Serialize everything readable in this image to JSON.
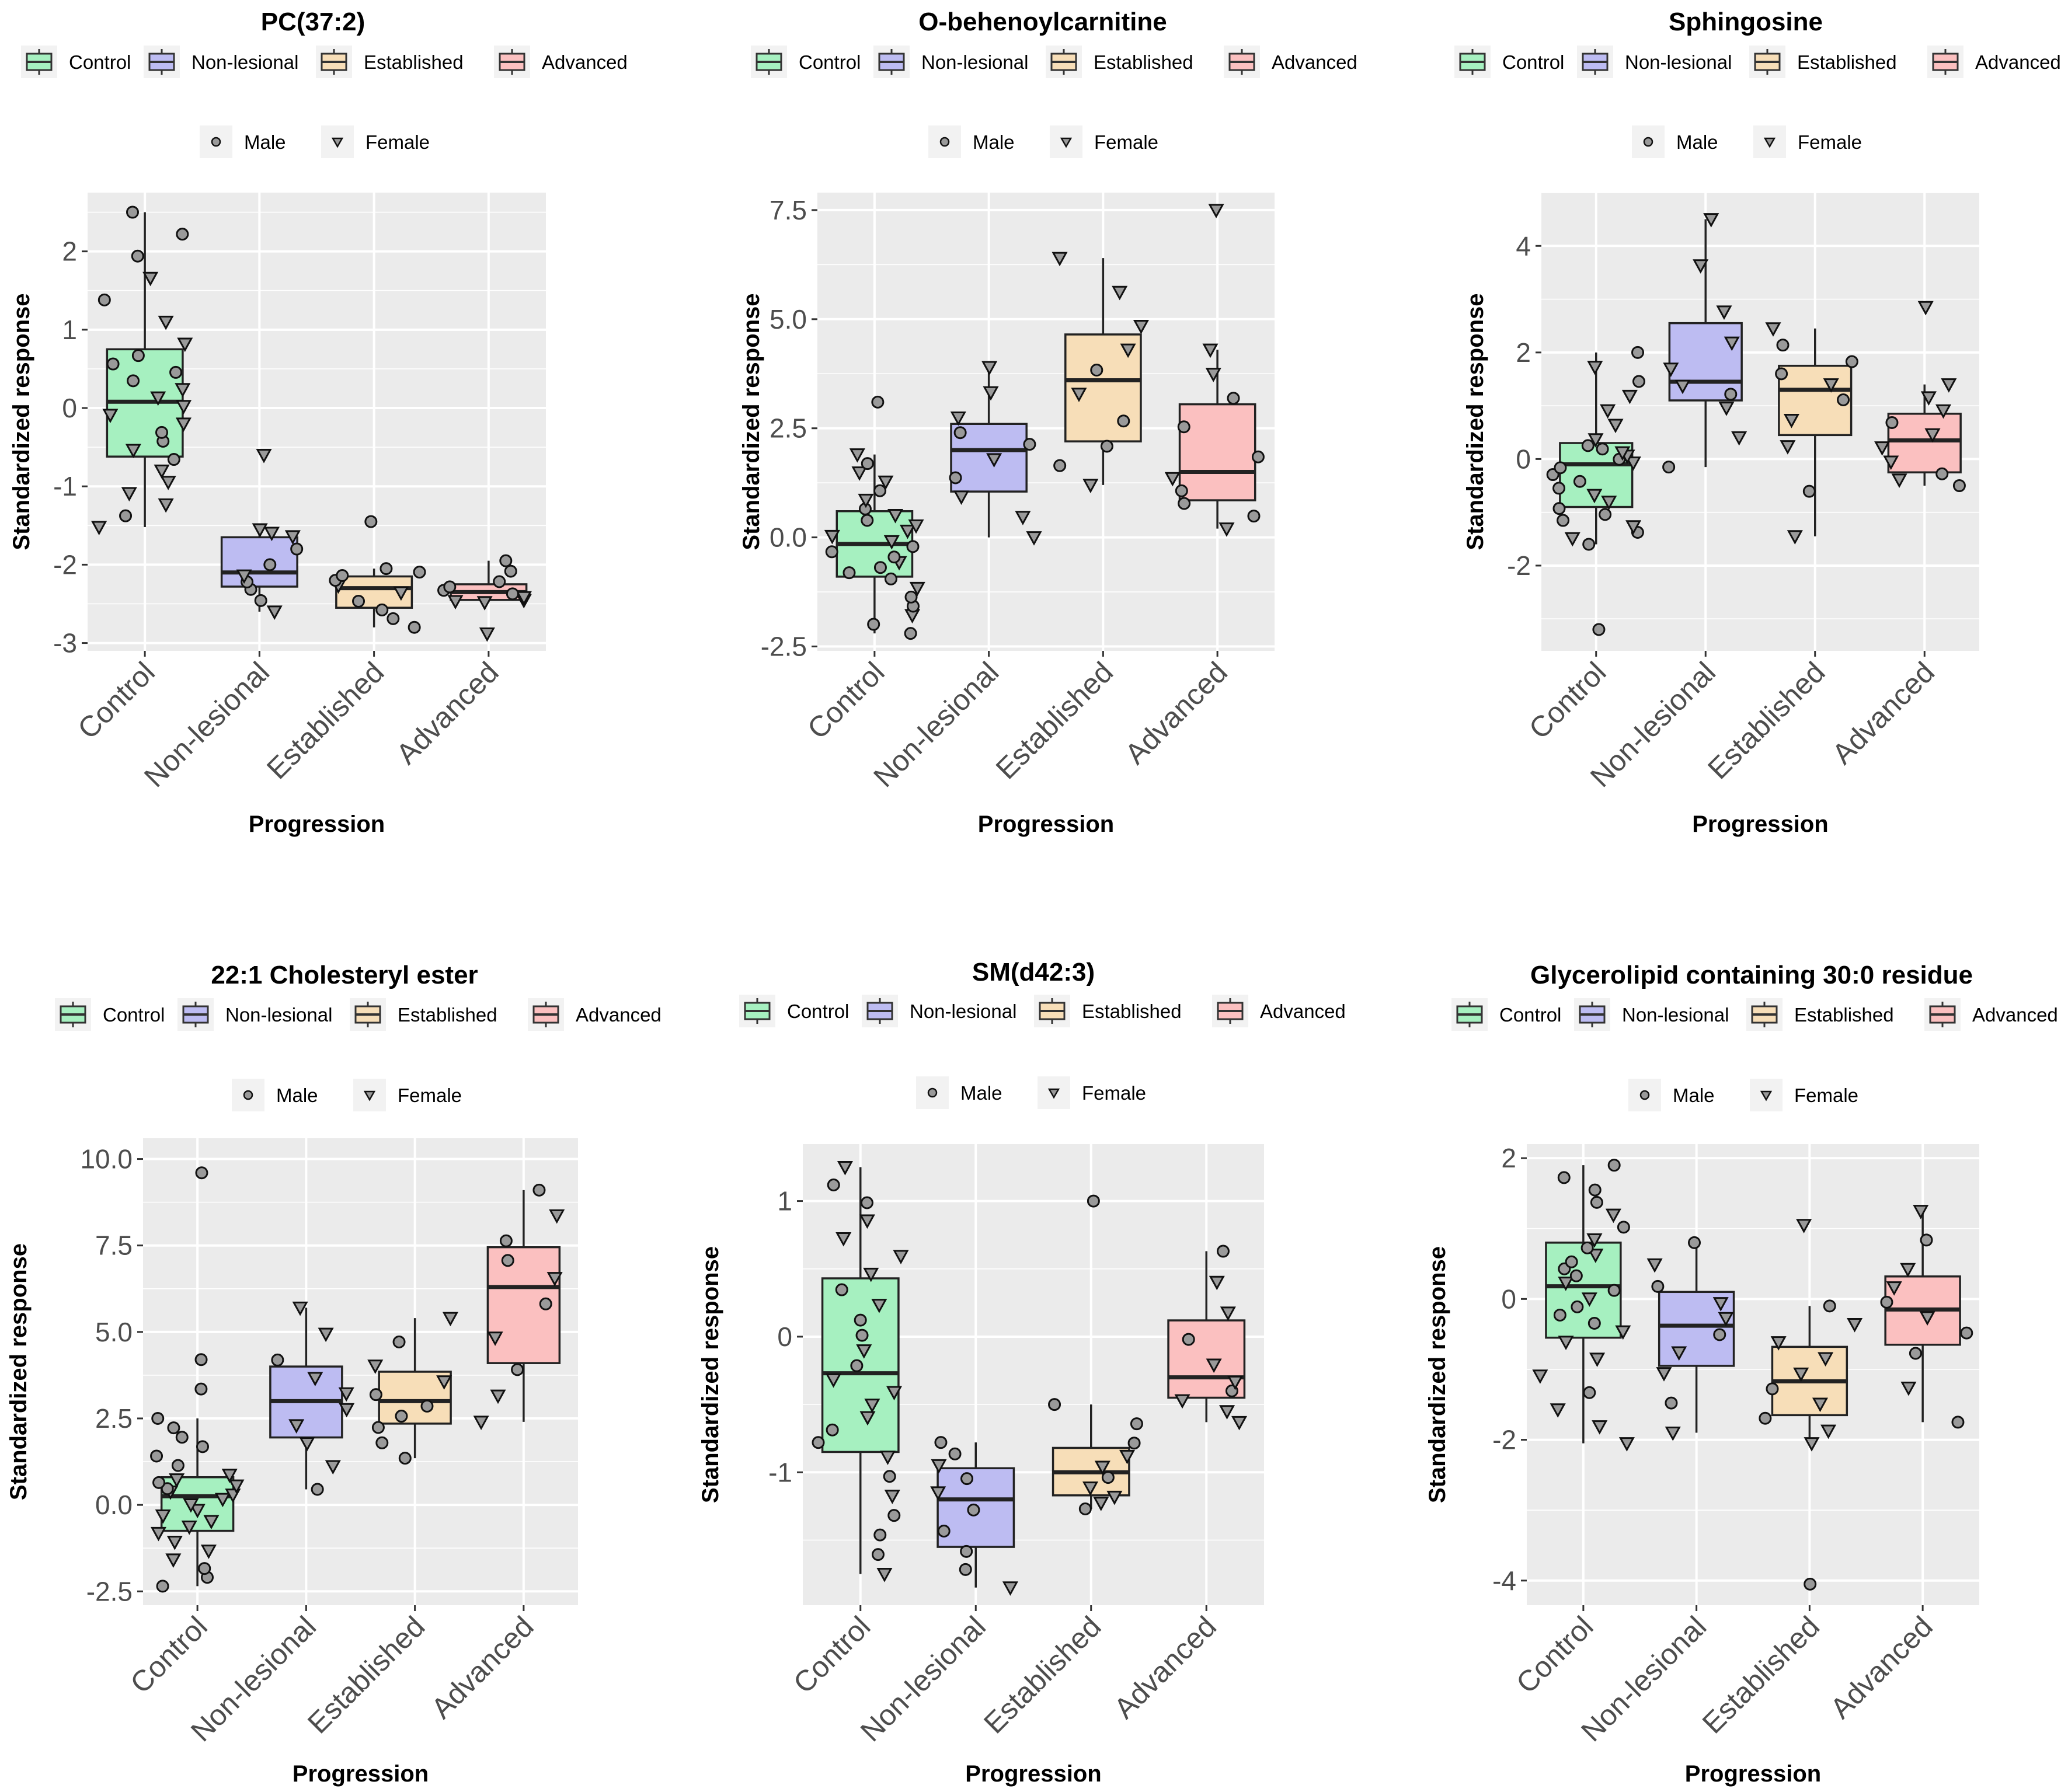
{
  "legend": {
    "groups": [
      "Control",
      "Non-lesional",
      "Established",
      "Advanced"
    ],
    "sexes": [
      "Male",
      "Female"
    ]
  },
  "colors": {
    "Control": "#a6f0c0",
    "Non-lesional": "#bdbcf2",
    "Established": "#f7deb8",
    "Advanced": "#fbc0c0",
    "panel": "#ebebeb",
    "grid": "#ffffff",
    "point": "#9a9a9a"
  },
  "icons": {
    "male": "circle-marker",
    "female": "triangle-down-marker"
  },
  "chart_data": [
    {
      "type": "box",
      "title": "PC(37:2)",
      "xlabel": "Progression",
      "ylabel": "Standardized response",
      "categories": [
        "Control",
        "Non-lesional",
        "Established",
        "Advanced"
      ],
      "ylim": [
        -3.1,
        2.75
      ],
      "yticks": [
        2,
        1,
        0,
        -1,
        -2,
        -3
      ],
      "ytick_labels": [
        "2",
        "1",
        "0",
        "-1",
        "-2",
        "-3"
      ],
      "boxes": [
        {
          "group": "Control",
          "q1": -0.62,
          "median": 0.08,
          "q3": 0.75,
          "whisker_low": -1.52,
          "whisker_high": 2.5
        },
        {
          "group": "Non-lesional",
          "q1": -2.28,
          "median": -2.1,
          "q3": -1.65,
          "whisker_low": -2.6,
          "whisker_high": -1.55
        },
        {
          "group": "Established",
          "q1": -2.55,
          "median": -2.3,
          "q3": -2.15,
          "whisker_low": -2.8,
          "whisker_high": -2.05
        },
        {
          "group": "Advanced",
          "q1": -2.45,
          "median": -2.35,
          "q3": -2.25,
          "whisker_low": -2.48,
          "whisker_high": -1.95
        }
      ],
      "outliers": [
        {
          "group": "Non-lesional",
          "value": -0.6,
          "sex": "Female"
        },
        {
          "group": "Established",
          "value": -1.45,
          "sex": "Male"
        },
        {
          "group": "Advanced",
          "value": -2.88,
          "sex": "Female"
        }
      ]
    },
    {
      "type": "box",
      "title": "O-behenoylcarnitine",
      "xlabel": "Progression",
      "ylabel": "Standardized response",
      "categories": [
        "Control",
        "Non-lesional",
        "Established",
        "Advanced"
      ],
      "ylim": [
        -2.6,
        7.9
      ],
      "yticks": [
        7.5,
        5.0,
        2.5,
        0.0,
        -2.5
      ],
      "ytick_labels": [
        "7.5",
        "5.0",
        "2.5",
        "0.0",
        "-2.5"
      ],
      "boxes": [
        {
          "group": "Control",
          "q1": -0.9,
          "median": -0.15,
          "q3": 0.6,
          "whisker_low": -2.2,
          "whisker_high": 1.9
        },
        {
          "group": "Non-lesional",
          "q1": 1.05,
          "median": 2.0,
          "q3": 2.6,
          "whisker_low": 0.0,
          "whisker_high": 3.9
        },
        {
          "group": "Established",
          "q1": 2.2,
          "median": 3.6,
          "q3": 4.65,
          "whisker_low": 1.2,
          "whisker_high": 6.4
        },
        {
          "group": "Advanced",
          "q1": 0.85,
          "median": 1.5,
          "q3": 3.05,
          "whisker_low": 0.2,
          "whisker_high": 4.3
        }
      ],
      "outliers": [
        {
          "group": "Control",
          "value": 3.1,
          "sex": "Male"
        },
        {
          "group": "Advanced",
          "value": 7.5,
          "sex": "Female"
        }
      ]
    },
    {
      "type": "box",
      "title": "Sphingosine",
      "xlabel": "Progression",
      "ylabel": "Standardized response",
      "categories": [
        "Control",
        "Non-lesional",
        "Established",
        "Advanced"
      ],
      "ylim": [
        -3.6,
        5.0
      ],
      "yticks": [
        4,
        2,
        0,
        -2
      ],
      "ytick_labels": [
        "4",
        "2",
        "0",
        "-2"
      ],
      "boxes": [
        {
          "group": "Control",
          "q1": -0.9,
          "median": -0.1,
          "q3": 0.3,
          "whisker_low": -1.6,
          "whisker_high": 2.0
        },
        {
          "group": "Non-lesional",
          "q1": 1.1,
          "median": 1.45,
          "q3": 2.55,
          "whisker_low": -0.15,
          "whisker_high": 4.5
        },
        {
          "group": "Established",
          "q1": 0.45,
          "median": 1.3,
          "q3": 1.75,
          "whisker_low": -1.45,
          "whisker_high": 2.45
        },
        {
          "group": "Advanced",
          "q1": -0.25,
          "median": 0.35,
          "q3": 0.85,
          "whisker_low": -0.5,
          "whisker_high": 1.4
        }
      ],
      "outliers": [
        {
          "group": "Control",
          "value": -3.2,
          "sex": "Male"
        },
        {
          "group": "Advanced",
          "value": 2.85,
          "sex": "Female"
        }
      ]
    },
    {
      "type": "box",
      "title": "22:1 Cholesteryl ester",
      "xlabel": "Progression",
      "ylabel": "Standardized response",
      "categories": [
        "Control",
        "Non-lesional",
        "Established",
        "Advanced"
      ],
      "ylim": [
        -2.9,
        10.6
      ],
      "yticks": [
        10.0,
        7.5,
        5.0,
        2.5,
        0.0,
        -2.5
      ],
      "ytick_labels": [
        "10.0",
        "7.5",
        "5.0",
        "2.5",
        "0.0",
        "-2.5"
      ],
      "boxes": [
        {
          "group": "Control",
          "q1": -0.75,
          "median": 0.25,
          "q3": 0.8,
          "whisker_low": -2.35,
          "whisker_high": 2.5
        },
        {
          "group": "Non-lesional",
          "q1": 1.95,
          "median": 3.0,
          "q3": 4.0,
          "whisker_low": 0.45,
          "whisker_high": 5.7
        },
        {
          "group": "Established",
          "q1": 2.35,
          "median": 3.0,
          "q3": 3.85,
          "whisker_low": 1.35,
          "whisker_high": 5.4
        },
        {
          "group": "Advanced",
          "q1": 4.1,
          "median": 6.3,
          "q3": 7.45,
          "whisker_low": 2.4,
          "whisker_high": 9.1
        }
      ],
      "outliers": [
        {
          "group": "Control",
          "value": 9.6,
          "sex": "Male"
        },
        {
          "group": "Control",
          "value": 4.2,
          "sex": "Male"
        },
        {
          "group": "Control",
          "value": 3.35,
          "sex": "Male"
        }
      ]
    },
    {
      "type": "box",
      "title": "SM(d42:3)",
      "xlabel": "Progression",
      "ylabel": "Standardized response",
      "categories": [
        "Control",
        "Non-lesional",
        "Established",
        "Advanced"
      ],
      "ylim": [
        -1.98,
        1.42
      ],
      "yticks": [
        1,
        0,
        -1
      ],
      "ytick_labels": [
        "1",
        "0",
        "-1"
      ],
      "boxes": [
        {
          "group": "Control",
          "q1": -0.85,
          "median": -0.27,
          "q3": 0.43,
          "whisker_low": -1.75,
          "whisker_high": 1.25
        },
        {
          "group": "Non-lesional",
          "q1": -1.55,
          "median": -1.2,
          "q3": -0.97,
          "whisker_low": -1.85,
          "whisker_high": -0.78
        },
        {
          "group": "Established",
          "q1": -1.17,
          "median": -1.0,
          "q3": -0.82,
          "whisker_low": -1.27,
          "whisker_high": -0.5
        },
        {
          "group": "Advanced",
          "q1": -0.45,
          "median": -0.3,
          "q3": 0.12,
          "whisker_low": -0.63,
          "whisker_high": 0.63
        }
      ],
      "outliers": [
        {
          "group": "Established",
          "value": 1.0,
          "sex": "Male"
        }
      ]
    },
    {
      "type": "box",
      "title": "Glycerolipid containing 30:0 residue",
      "xlabel": "Progression",
      "ylabel": "Standardized response",
      "categories": [
        "Control",
        "Non-lesional",
        "Established",
        "Advanced"
      ],
      "ylim": [
        -4.35,
        2.2
      ],
      "yticks": [
        2,
        0,
        -2,
        -4
      ],
      "ytick_labels": [
        "2",
        "0",
        "-2",
        "-4"
      ],
      "boxes": [
        {
          "group": "Control",
          "q1": -0.55,
          "median": 0.18,
          "q3": 0.8,
          "whisker_low": -2.05,
          "whisker_high": 1.9
        },
        {
          "group": "Non-lesional",
          "q1": -0.95,
          "median": -0.38,
          "q3": 0.1,
          "whisker_low": -1.9,
          "whisker_high": 0.8
        },
        {
          "group": "Established",
          "q1": -1.65,
          "median": -1.17,
          "q3": -0.68,
          "whisker_low": -2.05,
          "whisker_high": -0.1
        },
        {
          "group": "Advanced",
          "q1": -0.65,
          "median": -0.15,
          "q3": 0.32,
          "whisker_low": -1.75,
          "whisker_high": 1.25
        }
      ],
      "outliers": [
        {
          "group": "Established",
          "value": 1.05,
          "sex": "Female"
        },
        {
          "group": "Established",
          "value": -4.05,
          "sex": "Male"
        }
      ]
    }
  ]
}
